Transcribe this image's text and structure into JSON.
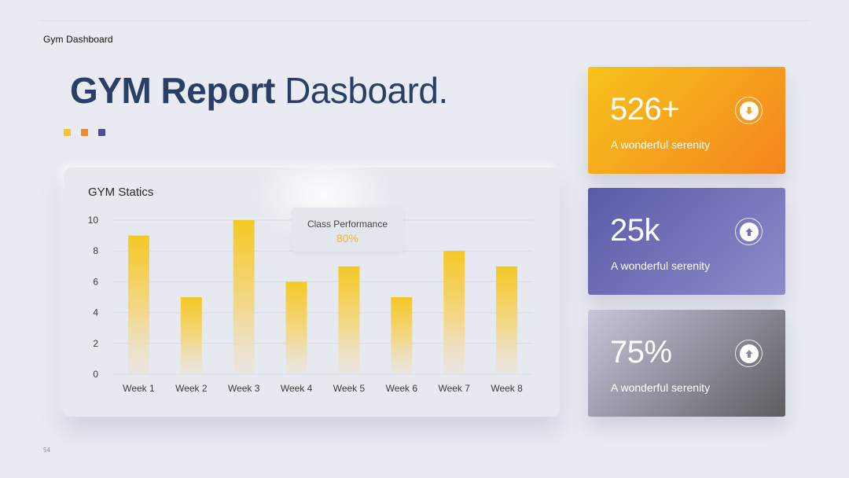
{
  "header": {
    "label": "Gym Dashboard"
  },
  "title": {
    "bold": "GYM Report",
    "light": "Dasboard."
  },
  "accent_dots": [
    "#f4c430",
    "#f08a2d",
    "#4e4c9a"
  ],
  "chart": {
    "title": "GYM Statics",
    "tooltip": {
      "label": "Class Performance",
      "value": "80%"
    }
  },
  "chart_data": {
    "type": "bar",
    "title": "GYM Statics",
    "categories": [
      "Week 1",
      "Week 2",
      "Week 3",
      "Week 4",
      "Week 5",
      "Week 6",
      "Week 7",
      "Week 8"
    ],
    "values": [
      9,
      5,
      10,
      6,
      7,
      5,
      8,
      7
    ],
    "ylim": [
      0,
      10
    ],
    "yticks": [
      0,
      2,
      4,
      6,
      8,
      10
    ],
    "grid": true,
    "bar_color": "#f4c825"
  },
  "cards": [
    {
      "value": "526+",
      "subtitle": "A wonderful serenity",
      "icon": "arrow-down-icon",
      "gradient": [
        "#f6c31c",
        "#f5841f"
      ]
    },
    {
      "value": "25k",
      "subtitle": "A wonderful serenity",
      "icon": "arrow-up-icon",
      "gradient": [
        "#5b5aa8",
        "#8d8cc9"
      ]
    },
    {
      "value": "75%",
      "subtitle": "A wonderful serenity",
      "icon": "arrow-up-icon",
      "gradient": [
        "#c8c5da",
        "#5d5d62"
      ]
    }
  ],
  "footer": {
    "page_number": "54"
  }
}
